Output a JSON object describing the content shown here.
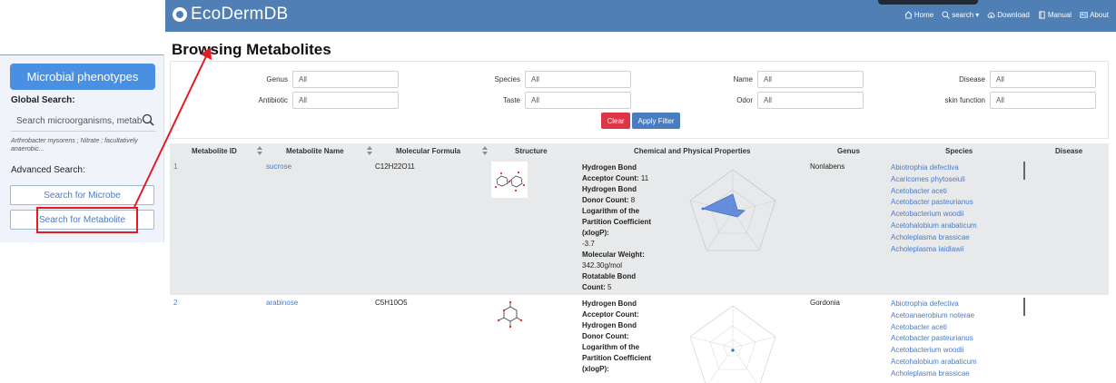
{
  "navbar": {
    "brand": "EcoDermDB",
    "items": [
      {
        "label": "Home",
        "icon": "home-icon"
      },
      {
        "label": "search",
        "icon": "search-icon"
      },
      {
        "label": "Download",
        "icon": "cloud-download-icon"
      },
      {
        "label": "Manual",
        "icon": "book-icon"
      },
      {
        "label": "About",
        "icon": "id-card-icon"
      }
    ]
  },
  "sidebar": {
    "phenotypes_button": "Microbial phenotypes",
    "global_search_label": "Global Search:",
    "search_placeholder": "Search microorganisms, metab",
    "examples": "Arthrobacter mysorens ; Nitrate ; facultatively anaerobic...",
    "advanced_label": "Advanced Search:",
    "microbe_button": "Search for Microbe",
    "metabolite_button": "Search for Metabolite"
  },
  "page": {
    "title": "Browsing Metabolites"
  },
  "filters": {
    "row1": [
      {
        "label": "Genus",
        "value": "All"
      },
      {
        "label": "Species",
        "value": "All"
      },
      {
        "label": "Name",
        "value": "All"
      },
      {
        "label": "Disease",
        "value": "All"
      }
    ],
    "row2": [
      {
        "label": "Antibiotic",
        "value": "All"
      },
      {
        "label": "Taste",
        "value": "All"
      },
      {
        "label": "Odor",
        "value": "All"
      },
      {
        "label": "skin function",
        "value": "All"
      }
    ],
    "clear": "Clear",
    "apply": "Apply Filter"
  },
  "table": {
    "headers": [
      "Metabolite ID",
      "Metabolite Name",
      "Molecular Formula",
      "Structure",
      "Chemical and Physical Properties",
      "Genus",
      "Species",
      "Disease"
    ],
    "rows": [
      {
        "id": "1",
        "name": "sucrose",
        "formula": "C12H22O11",
        "genus": "Nonlabens",
        "props": {
          "hbac_label": "Hydrogen Bond Acceptor Count:",
          "hbac_value": "11",
          "hbdc_label": "Hydrogen Bond Donor Count:",
          "hbdc_value": "8",
          "logp_label": "Logarithm of the Partition Coefficient (xlogP):",
          "logp_value": "-3.7",
          "mw_label": "Molecular Weight:",
          "mw_value": "342.30g/mol",
          "rbc_label": "Rotatable Bond Count:",
          "rbc_value": "5"
        },
        "species": [
          "Abiotrophia defectiva",
          "Acaricomes phytoseiuli",
          "Acetobacter aceti",
          "Acetobacter pasteurianus",
          "Acetobacterium woodii",
          "Acetohalobium arabaticum",
          "Acholeplasma brassicae",
          "Acholeplasma laidlawii"
        ]
      },
      {
        "id": "2",
        "name": "arabinose",
        "formula": "C5H10O5",
        "genus": "Gordonia",
        "props": {
          "hbac_label": "Hydrogen Bond Acceptor Count:",
          "hbdc_label": "Hydrogen Bond Donor Count:",
          "logp_label": "Logarithm of the Partition Coefficient (xlogP):"
        },
        "species": [
          "Abiotrophia defectiva",
          "Acetoanaerobium noterae",
          "Acetobacter aceti",
          "Acetobacter pasteurianus",
          "Acetobacterium woodii",
          "Acetohalobium arabaticum",
          "Acholeplasma brassicae"
        ]
      }
    ]
  },
  "colors": {
    "navbar": "#4f7fb4",
    "primary_button": "#4a90e2",
    "clear_button": "#dc3545",
    "apply_button": "#4a7dc0",
    "annotation": "#e31b23",
    "radar_fill": "#3b6fd6"
  }
}
